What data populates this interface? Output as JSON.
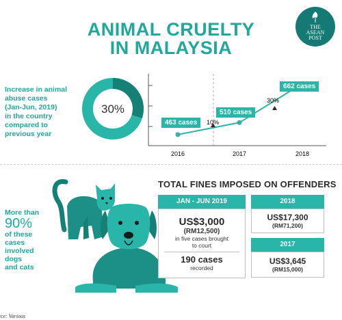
{
  "title": {
    "line1": "ANIMAL CRUELTY",
    "line2": "IN MALAYSIA"
  },
  "logo": {
    "line1": "THE",
    "line2": "ASEAN",
    "line3": "POST"
  },
  "donut": {
    "label_lines": [
      "Increase in animal",
      "abuse cases",
      "(Jan-Jun, 2019)",
      "in the country",
      "compared to",
      "previous year"
    ],
    "value_text": "30%",
    "fraction": 0.3,
    "colors": {
      "main": "#29b5a8",
      "highlight": "#167f76"
    }
  },
  "chart_data": {
    "type": "line",
    "x": [
      "2016",
      "2017",
      "2018"
    ],
    "values": [
      463,
      510,
      662
    ],
    "data_labels": [
      "463 cases",
      "510 cases",
      "662 cases"
    ],
    "annotations": [
      "10%",
      "30%"
    ],
    "title": "",
    "xlabel": "",
    "ylabel": ""
  },
  "pets": {
    "line1": "More than",
    "big": "90%",
    "line2": "of these cases",
    "line3": "involved dogs",
    "line4": "and cats"
  },
  "fines": {
    "title": "TOTAL FINES IMPOSED ON OFFENDERS",
    "jan_jun_2019": {
      "header": "JAN - JUN 2019",
      "amount": "US$3,000",
      "amount_rm": "(RM12,500)",
      "note_line1": "in five cases brought",
      "note_line2": "to court",
      "cases": "190 cases",
      "cases_note": "recorded"
    },
    "y2018": {
      "header": "2018",
      "amount": "US$17,300",
      "amount_rm": "(RM71,200)"
    },
    "y2017": {
      "header": "2017",
      "amount": "US$3,645",
      "amount_rm": "(RM15,000)"
    }
  },
  "source": "rce: Various"
}
